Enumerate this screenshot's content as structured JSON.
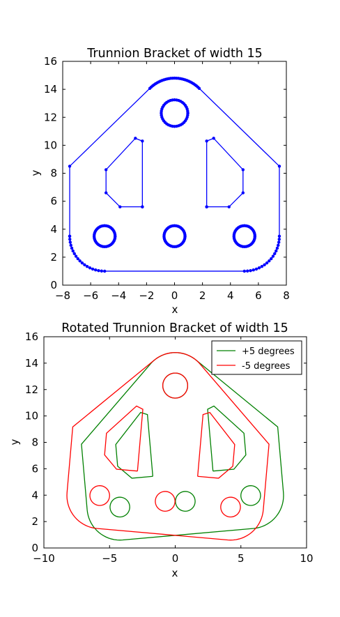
{
  "chart_data": [
    {
      "type": "line",
      "title": "Trunnion Bracket of width 15",
      "xlabel": "x",
      "ylabel": "y",
      "xlim": [
        -8,
        8
      ],
      "ylim": [
        0,
        16
      ],
      "xticks": [
        -8,
        -6,
        -4,
        -2,
        0,
        2,
        4,
        6,
        8
      ],
      "yticks": [
        0,
        2,
        4,
        6,
        8,
        10,
        12,
        14,
        16
      ],
      "xtick_labels": [
        "−8",
        "−6",
        "−4",
        "−2",
        "0",
        "2",
        "4",
        "6",
        "8"
      ],
      "ytick_labels": [
        "0",
        "2",
        "4",
        "6",
        "8",
        "10",
        "12",
        "14",
        "16"
      ],
      "grid": false,
      "series": [
        {
          "color": "#0000ff",
          "marker": "dot",
          "outline": {
            "half_width": 7.5,
            "bottom_y": 1.0,
            "corner_radius": 2.5,
            "shoulder_y": 8.5,
            "top_center": [
              0,
              12.3
            ],
            "top_radius": 2.5
          },
          "holes": [
            {
              "center": [
                0,
                12.3
              ],
              "radius": 0.95
            },
            {
              "center": [
                -5,
                3.5
              ],
              "radius": 0.75
            },
            {
              "center": [
                0,
                3.5
              ],
              "radius": 0.75
            },
            {
              "center": [
                5,
                3.5
              ],
              "radius": 0.75
            }
          ],
          "slots": [
            {
              "points": [
                [
                  -2.3,
                  5.6
                ],
                [
                  -3.9,
                  5.6
                ],
                [
                  -4.9,
                  6.6
                ],
                [
                  -4.9,
                  8.25
                ],
                [
                  -2.8,
                  10.5
                ],
                [
                  -2.3,
                  10.3
                ],
                [
                  -2.3,
                  5.6
                ]
              ]
            },
            {
              "points": [
                [
                  2.3,
                  5.6
                ],
                [
                  3.9,
                  5.6
                ],
                [
                  4.9,
                  6.6
                ],
                [
                  4.9,
                  8.25
                ],
                [
                  2.8,
                  10.5
                ],
                [
                  2.3,
                  10.3
                ],
                [
                  2.3,
                  5.6
                ]
              ]
            }
          ]
        }
      ]
    },
    {
      "type": "line",
      "title": "Rotated Trunnion Bracket of width 15",
      "xlabel": "x",
      "ylabel": "y",
      "xlim": [
        -10,
        10
      ],
      "ylim": [
        0,
        16
      ],
      "xticks": [
        -10,
        -5,
        0,
        5,
        10
      ],
      "yticks": [
        0,
        2,
        4,
        6,
        8,
        10,
        12,
        14,
        16
      ],
      "xtick_labels": [
        "−10",
        "−5",
        "0",
        "5",
        "10"
      ],
      "ytick_labels": [
        "0",
        "2",
        "4",
        "6",
        "8",
        "10",
        "12",
        "14",
        "16"
      ],
      "grid": false,
      "legend": "top-right",
      "series": [
        {
          "name": "+5 degrees",
          "color": "#008000",
          "rotation_deg": 5
        },
        {
          "name": "-5 degrees",
          "color": "#ff0000",
          "rotation_deg": -5
        }
      ]
    }
  ]
}
